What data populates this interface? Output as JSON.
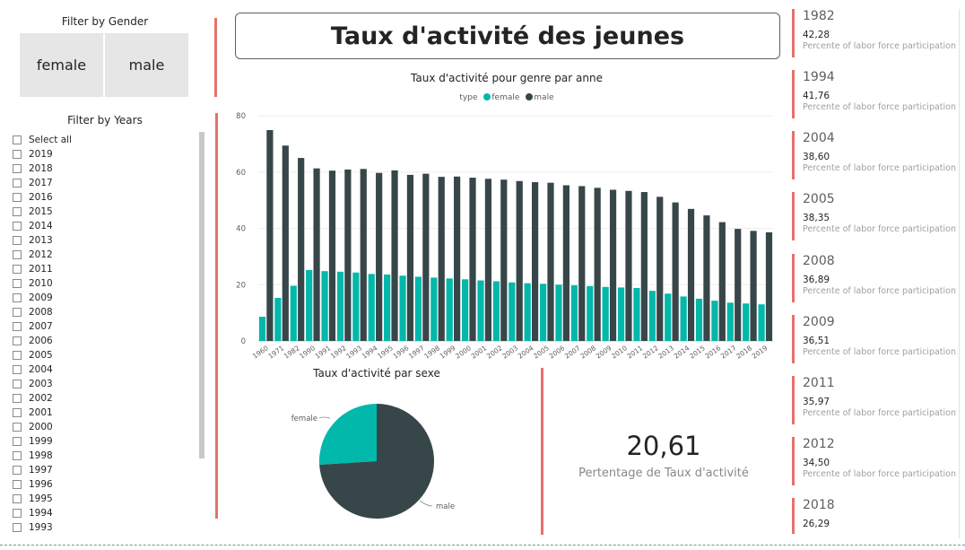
{
  "gender_filter": {
    "title": "Filter by Gender",
    "options": [
      "female",
      "male"
    ]
  },
  "years_filter": {
    "title": "Filter by Years",
    "select_all": "Select all",
    "years": [
      "2019",
      "2018",
      "2017",
      "2016",
      "2015",
      "2014",
      "2013",
      "2012",
      "2011",
      "2010",
      "2009",
      "2008",
      "2007",
      "2006",
      "2005",
      "2004",
      "2003",
      "2002",
      "2001",
      "2000",
      "1999",
      "1998",
      "1997",
      "1996",
      "1995",
      "1994",
      "1993"
    ]
  },
  "main_title": "Taux d'activité des jeunes",
  "colors": {
    "female": "#01b8aa",
    "male": "#374649",
    "accent": "#e8706a"
  },
  "bar_chart": {
    "title": "Taux d'activité pour genre par anne",
    "legend_title": "type",
    "legend": [
      "female",
      "male"
    ]
  },
  "pie_chart": {
    "title": "Taux d'activité par sexe",
    "labels": [
      "female",
      "male"
    ]
  },
  "kpi": {
    "value": "20,61",
    "label": "Pertentage de Taux d'activité"
  },
  "cards": [
    {
      "year": "1982",
      "value": "42,28",
      "desc": "Percente of labor force participation"
    },
    {
      "year": "1994",
      "value": "41,76",
      "desc": "Percente of labor force participation"
    },
    {
      "year": "2004",
      "value": "38,60",
      "desc": "Percente of labor force participation"
    },
    {
      "year": "2005",
      "value": "38,35",
      "desc": "Percente of labor force participation"
    },
    {
      "year": "2008",
      "value": "36,89",
      "desc": "Percente of labor force participation"
    },
    {
      "year": "2009",
      "value": "36,51",
      "desc": "Percente of labor force participation"
    },
    {
      "year": "2011",
      "value": "35,97",
      "desc": "Percente of labor force participation"
    },
    {
      "year": "2012",
      "value": "34,50",
      "desc": "Percente of labor force participation"
    },
    {
      "year": "2018",
      "value": "26,29",
      "desc": ""
    }
  ],
  "chart_data": [
    {
      "type": "bar",
      "title": "Taux d'activité pour genre par anne",
      "legend_title": "type",
      "categories": [
        "1960",
        "1971",
        "1982",
        "1990",
        "1991",
        "1992",
        "1993",
        "1994",
        "1995",
        "1996",
        "1997",
        "1998",
        "1999",
        "2000",
        "2001",
        "2002",
        "2003",
        "2004",
        "2005",
        "2006",
        "2007",
        "2008",
        "2009",
        "2010",
        "2011",
        "2012",
        "2013",
        "2014",
        "2015",
        "2016",
        "2017",
        "2018",
        "2019"
      ],
      "series": [
        {
          "name": "female",
          "values": [
            8.6,
            15.3,
            19.6,
            25.2,
            24.8,
            24.6,
            24.3,
            23.8,
            23.6,
            23.2,
            22.8,
            22.5,
            22.2,
            21.9,
            21.5,
            21.2,
            20.8,
            20.5,
            20.3,
            20.0,
            19.8,
            19.5,
            19.2,
            19.0,
            18.8,
            17.8,
            16.8,
            15.8,
            15.0,
            14.3,
            13.6,
            13.3,
            13.0
          ]
        },
        {
          "name": "male",
          "values": [
            74.9,
            69.4,
            65.0,
            61.3,
            60.5,
            60.9,
            61.1,
            59.7,
            60.6,
            59.0,
            59.4,
            58.3,
            58.4,
            58.0,
            57.6,
            57.3,
            56.8,
            56.4,
            56.2,
            55.3,
            55.0,
            54.4,
            53.7,
            53.3,
            52.9,
            51.2,
            49.2,
            46.9,
            44.6,
            42.2,
            39.8,
            39.1,
            38.6
          ]
        }
      ],
      "yticks": [
        0,
        20,
        40,
        60,
        80
      ],
      "ylim": [
        0,
        80
      ],
      "legend_position": "top-center",
      "grid": true
    },
    {
      "type": "pie",
      "title": "Taux d'activité par sexe",
      "labels": [
        "female",
        "male"
      ],
      "values": [
        26,
        74
      ]
    }
  ]
}
